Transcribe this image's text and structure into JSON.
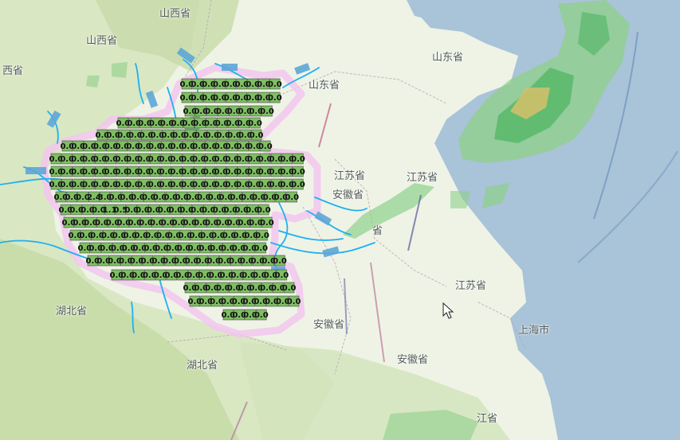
{
  "map": {
    "region_labels": {
      "shanxi_top": "山西省",
      "shanxi_left": "山西省",
      "shaanxi_edge": "西省",
      "shandong_ne": "山东省",
      "shandong_mid": "山东省",
      "jiangsu_a": "江苏省",
      "jiangsu_b": "江苏省",
      "jiangsu_c": "江苏省",
      "anhui_a": "安徽省",
      "anhui_b": "安徽省",
      "anhui_c": "安徽省",
      "anhui_d_partial": "省",
      "hubei_a": "湖北省",
      "hubei_b": "湖北省",
      "shanghai": "上海市",
      "zhejiang_partial": "江省"
    },
    "grid_value_text": "0.0",
    "grid_hot_values": [
      "2.4",
      "3.0",
      "1.1",
      "0.5"
    ],
    "colors": {
      "land": "#eef3e6",
      "mountain_green": "#cfe0b4",
      "sea": "#a9c3d8",
      "river": "#1fb0f0",
      "province_border": "#e6a7d9",
      "grid_cell": "#7ebf62",
      "grid_cell_border": "#474747",
      "radar_light": "#8fd08a",
      "radar_mid": "#58b86a",
      "radar_strong": "#d6c06a"
    },
    "cursor_icon": "mouse-pointer-icon"
  }
}
